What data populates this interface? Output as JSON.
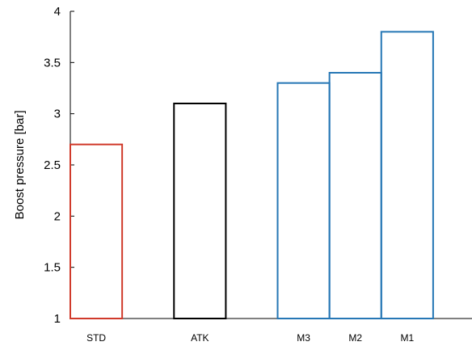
{
  "chart_data": {
    "type": "bar",
    "title": "",
    "xlabel": "",
    "ylabel": "Boost pressure [bar]",
    "ylim": [
      1,
      4
    ],
    "yticks": [
      "1",
      "1.5",
      "2",
      "2.5",
      "3",
      "3.5",
      "4"
    ],
    "xlim": [
      0,
      7.75
    ],
    "grid": false,
    "bars": [
      {
        "label": "STD",
        "value": 2.7,
        "x_start": 0.0,
        "x_end": 1.0,
        "color": "#d03a2b"
      },
      {
        "label": "ATK",
        "value": 3.1,
        "x_start": 2.0,
        "x_end": 3.0,
        "color": "#000000"
      },
      {
        "label": "M3",
        "value": 3.3,
        "x_start": 4.0,
        "x_end": 5.0,
        "color": "#2677b5"
      },
      {
        "label": "M2",
        "value": 3.4,
        "x_start": 5.0,
        "x_end": 6.0,
        "color": "#2677b5"
      },
      {
        "label": "M1",
        "value": 3.8,
        "x_start": 6.0,
        "x_end": 7.0,
        "color": "#2677b5"
      }
    ]
  }
}
